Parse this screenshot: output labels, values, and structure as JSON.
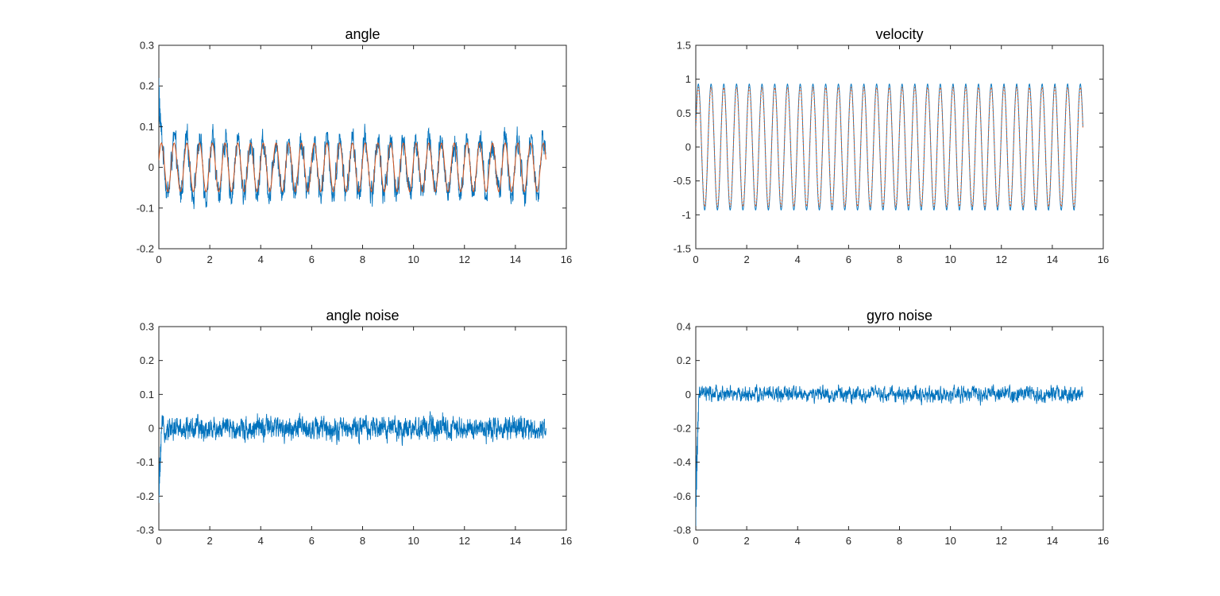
{
  "chart_data": [
    {
      "type": "line",
      "title": "angle",
      "xlim": [
        0,
        16
      ],
      "ylim": [
        -0.2,
        0.3
      ],
      "xticks": [
        "0",
        "2",
        "4",
        "6",
        "8",
        "10",
        "12",
        "14",
        "16"
      ],
      "yticks": [
        "-0.2",
        "-0.1",
        "0",
        "0.1",
        "0.2",
        "0.3"
      ],
      "grid": false,
      "series": [
        {
          "color": "#0072BD",
          "x_range": [
            0,
            15.2
          ],
          "points": 1900,
          "kind": "noisy-sine",
          "amplitude": 0.065,
          "period": 0.5,
          "noise": 0.022,
          "start_spike": 0.22
        },
        {
          "color": "#D95319",
          "x_range": [
            0,
            15.2
          ],
          "points": 600,
          "kind": "sine",
          "amplitude": 0.06,
          "period": 0.5
        }
      ]
    },
    {
      "type": "line",
      "title": "velocity",
      "xlim": [
        0,
        16
      ],
      "ylim": [
        -1.5,
        1.5
      ],
      "xticks": [
        "0",
        "2",
        "4",
        "6",
        "8",
        "10",
        "12",
        "14",
        "16"
      ],
      "yticks": [
        "-1.5",
        "-1",
        "-0.5",
        "0",
        "0.5",
        "1",
        "1.5"
      ],
      "grid": false,
      "series": [
        {
          "color": "#0072BD",
          "x_range": [
            0,
            15.2
          ],
          "points": 1400,
          "kind": "sine",
          "amplitude": 0.93,
          "period": 0.5
        },
        {
          "color": "#D95319",
          "x_range": [
            0,
            15.2
          ],
          "points": 1400,
          "kind": "sine-dotted",
          "amplitude": 0.88,
          "period": 0.5
        }
      ]
    },
    {
      "type": "line",
      "title": "angle noise",
      "xlim": [
        0,
        16
      ],
      "ylim": [
        -0.3,
        0.3
      ],
      "xticks": [
        "0",
        "2",
        "4",
        "6",
        "8",
        "10",
        "12",
        "14",
        "16"
      ],
      "yticks": [
        "-0.3",
        "-0.2",
        "-0.1",
        "0",
        "0.1",
        "0.2",
        "0.3"
      ],
      "grid": false,
      "series": [
        {
          "color": "#0072BD",
          "x_range": [
            0,
            15.2
          ],
          "points": 2200,
          "kind": "noise",
          "noise": 0.022,
          "start_spike": -0.22
        }
      ]
    },
    {
      "type": "line",
      "title": "gyro noise",
      "xlim": [
        0,
        16
      ],
      "ylim": [
        -0.8,
        0.4
      ],
      "xticks": [
        "0",
        "2",
        "4",
        "6",
        "8",
        "10",
        "12",
        "14",
        "16"
      ],
      "yticks": [
        "-0.8",
        "-0.6",
        "-0.4",
        "-0.2",
        "0",
        "0.2",
        "0.4"
      ],
      "grid": false,
      "series": [
        {
          "color": "#0072BD",
          "x_range": [
            0,
            15.2
          ],
          "points": 1800,
          "kind": "noise",
          "noise": 0.03,
          "start_spike": -0.78
        }
      ]
    }
  ]
}
